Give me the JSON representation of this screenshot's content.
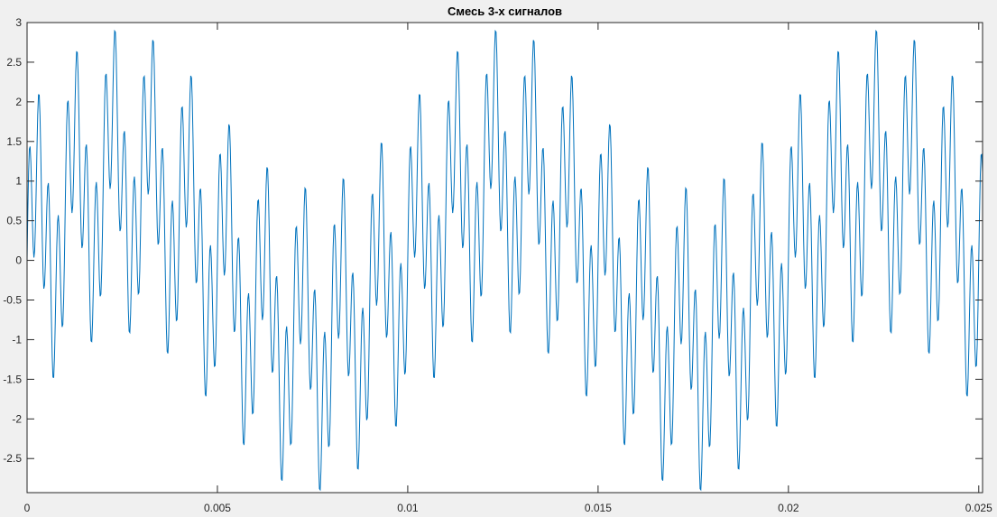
{
  "chart_data": {
    "type": "line",
    "title": "Смесь 3-х сигналов",
    "xlabel": "",
    "ylabel": "",
    "xlim": [
      0,
      0.0251
    ],
    "ylim": [
      -2.93,
      3
    ],
    "grid": false,
    "x_ticks": [
      0,
      0.005,
      0.01,
      0.015,
      0.02,
      0.025
    ],
    "x_tick_labels": [
      "0",
      "0.005",
      "0.01",
      "0.015",
      "0.02",
      "0.025"
    ],
    "y_ticks": [
      -2.5,
      -2,
      -1.5,
      -1,
      -0.5,
      0,
      0.5,
      1,
      1.5,
      2,
      2.5,
      3
    ],
    "y_tick_labels": [
      "-2.5",
      "-2",
      "-1.5",
      "-1",
      "-0.5",
      "0",
      "0.5",
      "1",
      "1.5",
      "2",
      "2.5",
      "3"
    ],
    "line_color": "#0072BD",
    "series": [
      {
        "components": [
          {
            "amplitude": 1,
            "frequency_hz": 100
          },
          {
            "amplitude": 1,
            "frequency_hz": 1000
          },
          {
            "amplitude": 1,
            "frequency_hz": 4000
          }
        ],
        "sample_step": 2e-05,
        "x_start": 0,
        "x_end": 0.0251
      }
    ]
  }
}
